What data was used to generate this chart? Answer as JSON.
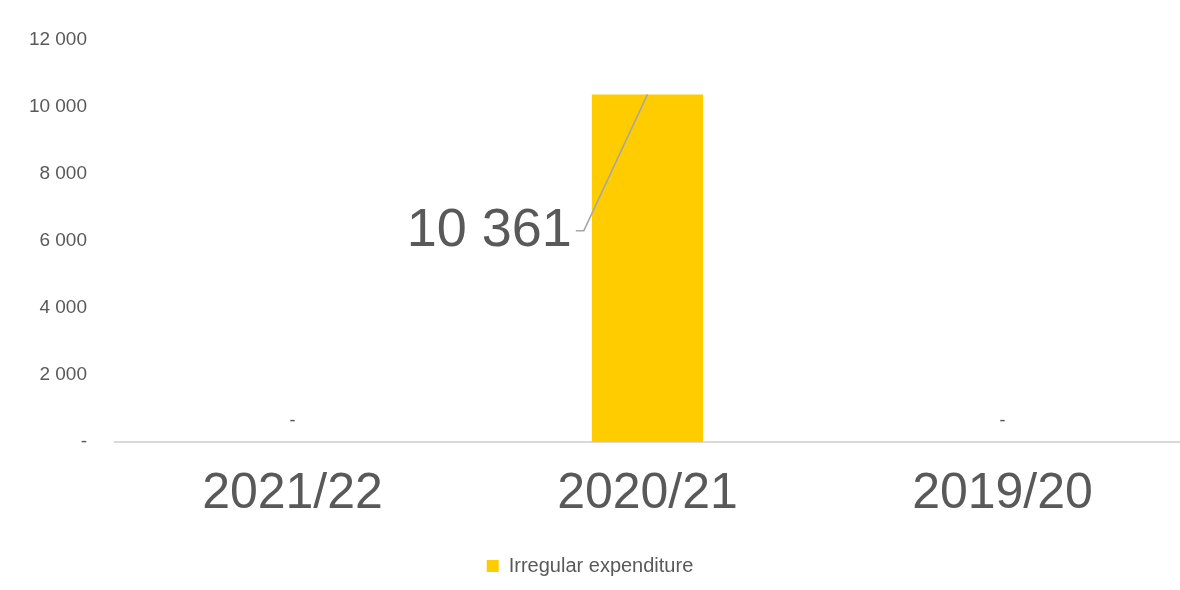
{
  "chart_data": {
    "type": "bar",
    "categories": [
      "2021/22",
      "2020/21",
      "2019/20"
    ],
    "series": [
      {
        "name": "Irregular expenditure",
        "color": "#ffcc00",
        "values": [
          0,
          10361,
          0
        ]
      }
    ],
    "value_labels": [
      "-",
      "10 361",
      "-"
    ],
    "ylim": [
      0,
      12000
    ],
    "yticks": [
      {
        "value": 0,
        "label": "-"
      },
      {
        "value": 2000,
        "label": "2 000"
      },
      {
        "value": 4000,
        "label": "4 000"
      },
      {
        "value": 6000,
        "label": "6 000"
      },
      {
        "value": 8000,
        "label": "8 000"
      },
      {
        "value": 10000,
        "label": "10 000"
      },
      {
        "value": 12000,
        "label": "12 000"
      }
    ],
    "grid": false,
    "legend": "bottom"
  }
}
